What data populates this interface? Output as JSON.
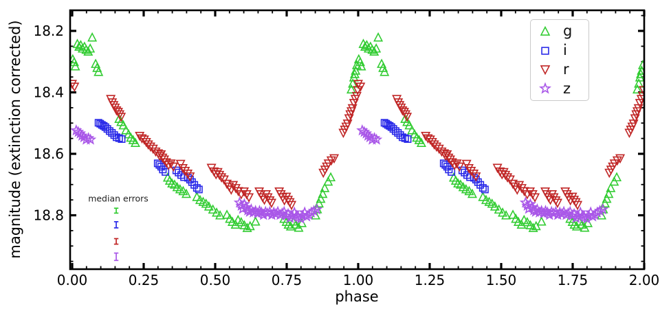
{
  "figure": {
    "xlabel": "phase",
    "ylabel": "magnitude (extinction corrected)",
    "x_tick_labels": [
      "0.00",
      "0.25",
      "0.50",
      "0.75",
      "1.00",
      "1.25",
      "1.50",
      "1.75",
      "2.00"
    ],
    "y_tick_labels": [
      "18.2",
      "18.4",
      "18.6",
      "18.8"
    ],
    "axis_color": "#000000",
    "background": "#ffffff"
  },
  "legend": {
    "items": [
      {
        "label": "g",
        "marker": "triangle-up",
        "color": "#33cc33"
      },
      {
        "label": "i",
        "marker": "square",
        "color": "#2929e8"
      },
      {
        "label": "r",
        "marker": "triangle-down",
        "color": "#c02626"
      },
      {
        "label": "z",
        "marker": "star",
        "color": "#a957e8"
      }
    ]
  },
  "annotation": {
    "label": "median errors",
    "phase": 0.154,
    "errors": [
      {
        "series": "g",
        "color": "#33cc33",
        "mag": 18.785,
        "err": 0.008
      },
      {
        "series": "i",
        "color": "#2929e8",
        "mag": 18.831,
        "err": 0.01
      },
      {
        "series": "r",
        "color": "#c02626",
        "mag": 18.885,
        "err": 0.009
      },
      {
        "series": "z",
        "color": "#a957e8",
        "mag": 18.935,
        "err": 0.012
      }
    ]
  },
  "chart_data": {
    "type": "scatter",
    "title": "",
    "xlabel": "phase",
    "ylabel": "magnitude (extinction corrected)",
    "xlim": [
      0,
      2
    ],
    "ylim": [
      18.98,
      18.13
    ],
    "y_axis_inverted": true,
    "grid": false,
    "legend_position": "upper right",
    "x_major_ticks": [
      0,
      0.25,
      0.5,
      0.75,
      1.0,
      1.25,
      1.5,
      1.75,
      2.0
    ],
    "y_major_ticks": [
      18.2,
      18.4,
      18.6,
      18.8
    ],
    "minor_tick_step": 0.05,
    "phase_duplication": true,
    "series": [
      {
        "name": "g",
        "marker": "triangle-up",
        "color": "#33cc33",
        "points": [
          [
            0.002,
            18.293
          ],
          [
            0.007,
            18.302
          ],
          [
            0.011,
            18.316
          ],
          [
            0.018,
            18.243
          ],
          [
            0.024,
            18.252
          ],
          [
            0.03,
            18.247
          ],
          [
            0.036,
            18.258
          ],
          [
            0.043,
            18.252
          ],
          [
            0.049,
            18.262
          ],
          [
            0.056,
            18.268
          ],
          [
            0.063,
            18.258
          ],
          [
            0.07,
            18.222
          ],
          [
            0.082,
            18.308
          ],
          [
            0.087,
            18.321
          ],
          [
            0.092,
            18.334
          ],
          [
            0.164,
            18.487
          ],
          [
            0.171,
            18.497
          ],
          [
            0.179,
            18.508
          ],
          [
            0.188,
            18.524
          ],
          [
            0.197,
            18.537
          ],
          [
            0.205,
            18.548
          ],
          [
            0.213,
            18.556
          ],
          [
            0.221,
            18.565
          ],
          [
            0.334,
            18.678
          ],
          [
            0.341,
            18.688
          ],
          [
            0.349,
            18.697
          ],
          [
            0.358,
            18.701
          ],
          [
            0.367,
            18.709
          ],
          [
            0.377,
            18.716
          ],
          [
            0.388,
            18.722
          ],
          [
            0.399,
            18.731
          ],
          [
            0.436,
            18.741
          ],
          [
            0.447,
            18.751
          ],
          [
            0.458,
            18.757
          ],
          [
            0.468,
            18.763
          ],
          [
            0.478,
            18.772
          ],
          [
            0.492,
            18.782
          ],
          [
            0.505,
            18.792
          ],
          [
            0.517,
            18.801
          ],
          [
            0.541,
            18.799
          ],
          [
            0.551,
            18.812
          ],
          [
            0.56,
            18.822
          ],
          [
            0.571,
            18.831
          ],
          [
            0.58,
            18.816
          ],
          [
            0.591,
            18.823
          ],
          [
            0.602,
            18.833
          ],
          [
            0.612,
            18.842
          ],
          [
            0.622,
            18.836
          ],
          [
            0.641,
            18.821
          ],
          [
            0.741,
            18.812
          ],
          [
            0.749,
            18.822
          ],
          [
            0.756,
            18.831
          ],
          [
            0.764,
            18.837
          ],
          [
            0.773,
            18.821
          ],
          [
            0.782,
            18.831
          ],
          [
            0.792,
            18.841
          ],
          [
            0.803,
            18.826
          ],
          [
            0.851,
            18.801
          ],
          [
            0.857,
            18.781
          ],
          [
            0.863,
            18.762
          ],
          [
            0.869,
            18.747
          ],
          [
            0.876,
            18.731
          ],
          [
            0.883,
            18.712
          ],
          [
            0.895,
            18.691
          ],
          [
            0.904,
            18.677
          ],
          [
            0.976,
            18.391
          ],
          [
            0.981,
            18.372
          ],
          [
            0.985,
            18.352
          ],
          [
            0.988,
            18.341
          ],
          [
            0.991,
            18.33
          ],
          [
            0.995,
            18.312
          ]
        ]
      },
      {
        "name": "i",
        "marker": "square",
        "color": "#2929e8",
        "points": [
          [
            0.092,
            18.499
          ],
          [
            0.098,
            18.502
          ],
          [
            0.104,
            18.506
          ],
          [
            0.11,
            18.509
          ],
          [
            0.116,
            18.513
          ],
          [
            0.123,
            18.519
          ],
          [
            0.131,
            18.526
          ],
          [
            0.139,
            18.532
          ],
          [
            0.147,
            18.539
          ],
          [
            0.155,
            18.546
          ],
          [
            0.164,
            18.549
          ],
          [
            0.173,
            18.552
          ],
          [
            0.299,
            18.631
          ],
          [
            0.305,
            18.636
          ],
          [
            0.311,
            18.642
          ],
          [
            0.317,
            18.651
          ],
          [
            0.326,
            18.659
          ],
          [
            0.364,
            18.654
          ],
          [
            0.372,
            18.661
          ],
          [
            0.381,
            18.669
          ],
          [
            0.391,
            18.676
          ],
          [
            0.405,
            18.678
          ],
          [
            0.412,
            18.684
          ],
          [
            0.419,
            18.692
          ],
          [
            0.427,
            18.701
          ],
          [
            0.436,
            18.711
          ],
          [
            0.443,
            18.716
          ]
        ]
      },
      {
        "name": "r",
        "marker": "triangle-down",
        "color": "#c02626",
        "points": [
          [
            0.0,
            18.372
          ],
          [
            0.008,
            18.381
          ],
          [
            0.135,
            18.421
          ],
          [
            0.14,
            18.432
          ],
          [
            0.145,
            18.441
          ],
          [
            0.15,
            18.449
          ],
          [
            0.155,
            18.458
          ],
          [
            0.161,
            18.463
          ],
          [
            0.166,
            18.471
          ],
          [
            0.171,
            18.479
          ],
          [
            0.236,
            18.541
          ],
          [
            0.244,
            18.549
          ],
          [
            0.252,
            18.553
          ],
          [
            0.259,
            18.561
          ],
          [
            0.266,
            18.569
          ],
          [
            0.274,
            18.576
          ],
          [
            0.283,
            18.583
          ],
          [
            0.292,
            18.592
          ],
          [
            0.301,
            18.598
          ],
          [
            0.306,
            18.606
          ],
          [
            0.311,
            18.601
          ],
          [
            0.316,
            18.612
          ],
          [
            0.322,
            18.618
          ],
          [
            0.329,
            18.627
          ],
          [
            0.337,
            18.636
          ],
          [
            0.345,
            18.631
          ],
          [
            0.354,
            18.641
          ],
          [
            0.379,
            18.632
          ],
          [
            0.387,
            18.646
          ],
          [
            0.395,
            18.655
          ],
          [
            0.404,
            18.664
          ],
          [
            0.412,
            18.673
          ],
          [
            0.487,
            18.645
          ],
          [
            0.496,
            18.657
          ],
          [
            0.503,
            18.666
          ],
          [
            0.509,
            18.659
          ],
          [
            0.515,
            18.668
          ],
          [
            0.522,
            18.676
          ],
          [
            0.531,
            18.683
          ],
          [
            0.541,
            18.697
          ],
          [
            0.549,
            18.706
          ],
          [
            0.556,
            18.716
          ],
          [
            0.563,
            18.701
          ],
          [
            0.572,
            18.711
          ],
          [
            0.581,
            18.721
          ],
          [
            0.591,
            18.731
          ],
          [
            0.601,
            18.722
          ],
          [
            0.61,
            18.731
          ],
          [
            0.618,
            18.741
          ],
          [
            0.654,
            18.722
          ],
          [
            0.66,
            18.731
          ],
          [
            0.666,
            18.741
          ],
          [
            0.672,
            18.749
          ],
          [
            0.678,
            18.731
          ],
          [
            0.684,
            18.741
          ],
          [
            0.691,
            18.751
          ],
          [
            0.697,
            18.759
          ],
          [
            0.724,
            18.722
          ],
          [
            0.73,
            18.731
          ],
          [
            0.736,
            18.741
          ],
          [
            0.742,
            18.751
          ],
          [
            0.749,
            18.739
          ],
          [
            0.755,
            18.749
          ],
          [
            0.761,
            18.757
          ],
          [
            0.767,
            18.766
          ],
          [
            0.878,
            18.661
          ],
          [
            0.884,
            18.651
          ],
          [
            0.89,
            18.641
          ],
          [
            0.896,
            18.631
          ],
          [
            0.906,
            18.621
          ],
          [
            0.916,
            18.614
          ],
          [
            0.948,
            18.531
          ],
          [
            0.953,
            18.521
          ],
          [
            0.958,
            18.511
          ],
          [
            0.963,
            18.501
          ],
          [
            0.968,
            18.484
          ],
          [
            0.972,
            18.471
          ],
          [
            0.976,
            18.461
          ],
          [
            0.98,
            18.451
          ],
          [
            0.985,
            18.434
          ],
          [
            0.99,
            18.421
          ],
          [
            0.995,
            18.411
          ],
          [
            0.998,
            18.392
          ]
        ]
      },
      {
        "name": "z",
        "marker": "star",
        "color": "#a957e8",
        "points": [
          [
            0.014,
            18.524
          ],
          [
            0.021,
            18.529
          ],
          [
            0.028,
            18.534
          ],
          [
            0.034,
            18.541
          ],
          [
            0.041,
            18.546
          ],
          [
            0.049,
            18.554
          ],
          [
            0.057,
            18.549
          ],
          [
            0.064,
            18.554
          ],
          [
            0.585,
            18.759
          ],
          [
            0.591,
            18.769
          ],
          [
            0.596,
            18.779
          ],
          [
            0.602,
            18.764
          ],
          [
            0.608,
            18.774
          ],
          [
            0.614,
            18.784
          ],
          [
            0.62,
            18.789
          ],
          [
            0.626,
            18.781
          ],
          [
            0.633,
            18.791
          ],
          [
            0.641,
            18.786
          ],
          [
            0.648,
            18.794
          ],
          [
            0.655,
            18.786
          ],
          [
            0.662,
            18.791
          ],
          [
            0.669,
            18.799
          ],
          [
            0.676,
            18.789
          ],
          [
            0.683,
            18.794
          ],
          [
            0.691,
            18.789
          ],
          [
            0.698,
            18.799
          ],
          [
            0.705,
            18.791
          ],
          [
            0.712,
            18.796
          ],
          [
            0.719,
            18.789
          ],
          [
            0.727,
            18.799
          ],
          [
            0.734,
            18.794
          ],
          [
            0.741,
            18.789
          ],
          [
            0.748,
            18.801
          ],
          [
            0.755,
            18.796
          ],
          [
            0.762,
            18.809
          ],
          [
            0.769,
            18.801
          ],
          [
            0.777,
            18.791
          ],
          [
            0.784,
            18.801
          ],
          [
            0.791,
            18.807
          ],
          [
            0.799,
            18.811
          ],
          [
            0.806,
            18.801
          ],
          [
            0.813,
            18.791
          ],
          [
            0.82,
            18.804
          ],
          [
            0.828,
            18.799
          ],
          [
            0.836,
            18.791
          ],
          [
            0.845,
            18.786
          ],
          [
            0.855,
            18.781
          ]
        ]
      }
    ]
  }
}
